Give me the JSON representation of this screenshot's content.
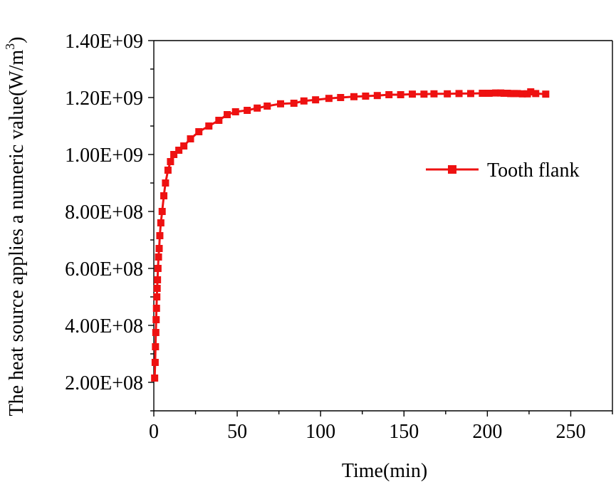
{
  "chart_data": {
    "type": "line",
    "title": "",
    "xlabel": "Time(min)",
    "ylabel": "The heat source applies a numeric value(W/m",
    "ylabel_superscript": "3",
    "ylabel_suffix": ")",
    "xlim": [
      0,
      275
    ],
    "ylim": [
      100000000,
      1400000000
    ],
    "x_ticks": [
      0,
      50,
      100,
      150,
      200,
      250
    ],
    "x_tick_labels": [
      "0",
      "50",
      "100",
      "150",
      "200",
      "250"
    ],
    "y_ticks": [
      200000000,
      400000000,
      600000000,
      800000000,
      1000000000,
      1200000000,
      1400000000
    ],
    "y_tick_labels": [
      "2.00E+08",
      "4.00E+08",
      "6.00E+08",
      "8.00E+08",
      "1.00E+09",
      "1.20E+09",
      "1.40E+09"
    ],
    "grid": false,
    "legend": "right",
    "series": [
      {
        "name": "Tooth flank",
        "color": "#ee1111",
        "marker": "square",
        "x": [
          0.5,
          0.8,
          1.0,
          1.2,
          1.4,
          1.6,
          1.8,
          2.0,
          2.2,
          2.5,
          2.8,
          3.2,
          3.6,
          4.2,
          5.0,
          6.0,
          7.0,
          8.5,
          10,
          12,
          15,
          18,
          22,
          27,
          33,
          39,
          44,
          49,
          56,
          62,
          68,
          76,
          84,
          90,
          97,
          105,
          112,
          120,
          127,
          134,
          141,
          148,
          155,
          162,
          168,
          176,
          183,
          190,
          197,
          201,
          205,
          208,
          210,
          212,
          214,
          216,
          218,
          221,
          224,
          226,
          229,
          235
        ],
        "values": [
          215000000,
          270000000,
          325000000,
          375000000,
          420000000,
          460000000,
          500000000,
          530000000,
          560000000,
          600000000,
          640000000,
          670000000,
          715000000,
          760000000,
          800000000,
          855000000,
          900000000,
          945000000,
          975000000,
          1000000000,
          1015000000,
          1030000000,
          1055000000,
          1080000000,
          1100000000,
          1120000000,
          1140000000,
          1150000000,
          1155000000,
          1163000000,
          1170000000,
          1178000000,
          1180000000,
          1188000000,
          1192000000,
          1197000000,
          1200000000,
          1203000000,
          1205000000,
          1207000000,
          1210000000,
          1210000000,
          1212000000,
          1212000000,
          1213000000,
          1213000000,
          1214000000,
          1214000000,
          1215000000,
          1215000000,
          1216000000,
          1216000000,
          1215000000,
          1215000000,
          1214000000,
          1214000000,
          1214000000,
          1213000000,
          1213000000,
          1220000000,
          1214000000,
          1212000000
        ]
      }
    ]
  }
}
